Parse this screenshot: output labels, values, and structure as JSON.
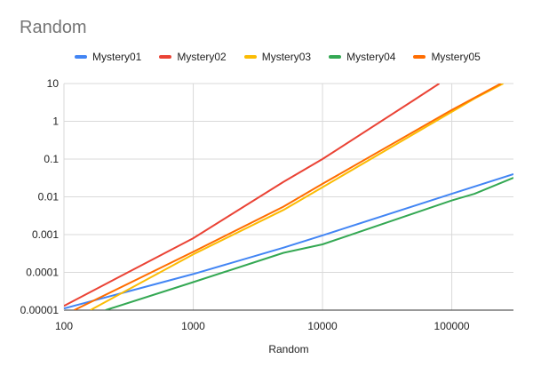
{
  "chart_data": {
    "type": "line",
    "title": "Random",
    "xlabel": "Random",
    "ylabel": "",
    "x_scale": "log",
    "y_scale": "log",
    "xlim": [
      100,
      300000
    ],
    "ylim": [
      1e-05,
      10
    ],
    "x_ticks": [
      "100",
      "1000",
      "10000",
      "100000"
    ],
    "y_ticks": [
      "0.00001",
      "0.0001",
      "0.001",
      "0.01",
      "0.1",
      "1",
      "10"
    ],
    "grid": true,
    "legend_position": "top",
    "series": [
      {
        "name": "Mystery01",
        "color": "#4285f4",
        "x": [
          100,
          1000,
          5000,
          10000,
          100000,
          300000
        ],
        "y": [
          1.1e-05,
          9e-05,
          0.00045,
          0.00095,
          0.012,
          0.04
        ]
      },
      {
        "name": "Mystery02",
        "color": "#ea4335",
        "x": [
          100,
          1000,
          5000,
          10000,
          50000,
          80000
        ],
        "y": [
          1.3e-05,
          0.0008,
          0.025,
          0.1,
          3.5,
          10
        ]
      },
      {
        "name": "Mystery03",
        "color": "#fbbc04",
        "x": [
          160,
          1000,
          5000,
          10000,
          150000,
          250000
        ],
        "y": [
          1e-05,
          0.0003,
          0.0045,
          0.018,
          4,
          10
        ]
      },
      {
        "name": "Mystery04",
        "color": "#34a853",
        "x": [
          210,
          1000,
          5000,
          10000,
          100000,
          150000,
          300000
        ],
        "y": [
          1e-05,
          5.5e-05,
          0.00033,
          0.00055,
          0.008,
          0.012,
          0.032
        ]
      },
      {
        "name": "Mystery05",
        "color": "#ff6d01",
        "x": [
          120,
          1000,
          5000,
          10000,
          100000,
          240000
        ],
        "y": [
          1e-05,
          0.00035,
          0.0055,
          0.022,
          2,
          10
        ]
      }
    ]
  }
}
